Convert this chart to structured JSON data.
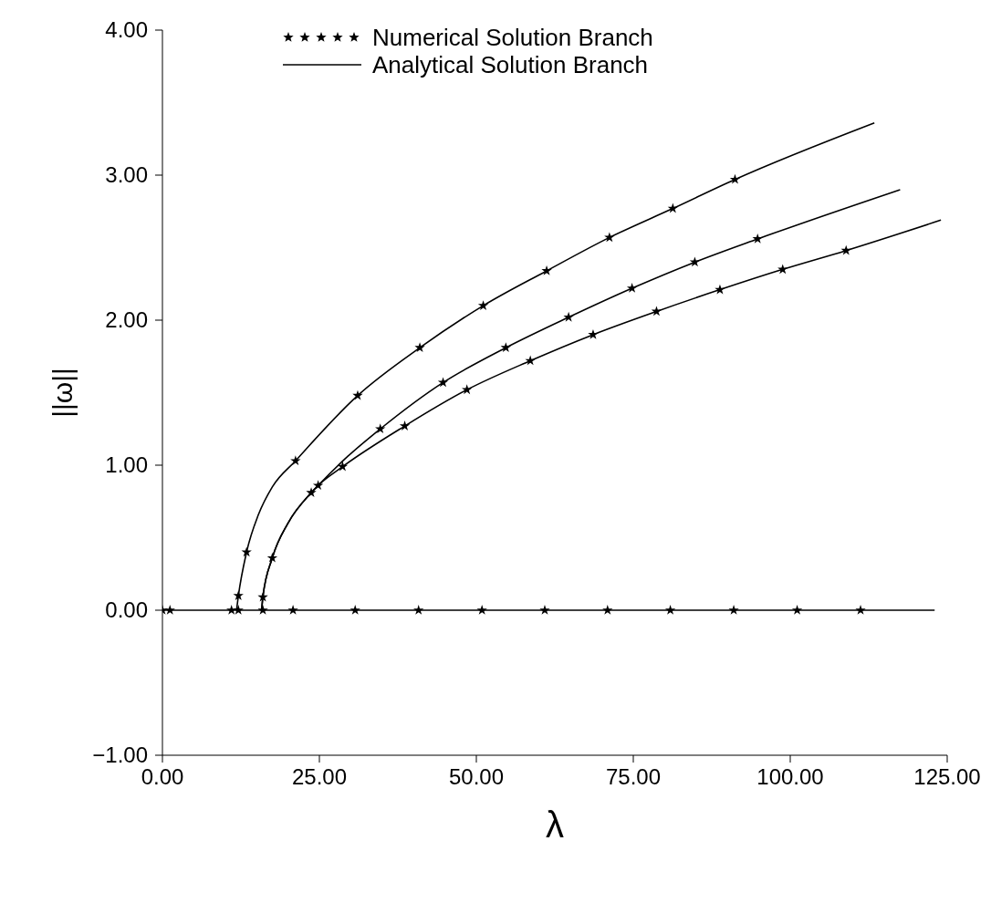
{
  "chart_data": {
    "type": "line",
    "xlabel": "λ",
    "ylabel": "||ω||",
    "xlim": [
      0,
      125
    ],
    "ylim": [
      -1,
      4
    ],
    "xticks": [
      {
        "value": 0,
        "label": "0.00"
      },
      {
        "value": 25,
        "label": "25.00"
      },
      {
        "value": 50,
        "label": "50.00"
      },
      {
        "value": 75,
        "label": "75.00"
      },
      {
        "value": 100,
        "label": "100.00"
      },
      {
        "value": 125,
        "label": "125.00"
      }
    ],
    "yticks": [
      {
        "value": -1,
        "label": "−1.00"
      },
      {
        "value": 0,
        "label": "0.00"
      },
      {
        "value": 1,
        "label": "1.00"
      },
      {
        "value": 2,
        "label": "2.00"
      },
      {
        "value": 3,
        "label": "3.00"
      },
      {
        "value": 4,
        "label": "4.00"
      }
    ],
    "grid": false,
    "legend": "top",
    "series": [
      {
        "name": "Numerical Solution Branch",
        "type": "scatter",
        "marker": "star",
        "color": "#000000",
        "x": [
          0,
          1.2,
          11.0,
          12.1,
          16.0,
          20.8,
          30.7,
          40.8,
          50.9,
          60.9,
          70.9,
          80.9,
          91.0,
          101.1,
          111.2,
          12.1,
          13.4,
          21.2,
          31.1,
          41.0,
          51.1,
          61.2,
          71.2,
          81.3,
          91.2,
          16.0,
          17.5,
          23.7,
          24.8,
          34.7,
          44.7,
          54.7,
          64.7,
          74.8,
          84.8,
          94.8,
          28.7,
          38.6,
          48.5,
          58.6,
          68.6,
          78.7,
          88.8,
          98.8,
          108.9
        ],
        "values": [
          0,
          0,
          0,
          0,
          0,
          0,
          0,
          0,
          0,
          0,
          0,
          0,
          0,
          0,
          0,
          0.1,
          0.4,
          1.03,
          1.48,
          1.81,
          2.1,
          2.34,
          2.57,
          2.77,
          2.97,
          0.09,
          0.36,
          0.81,
          0.86,
          1.25,
          1.57,
          1.81,
          2.02,
          2.22,
          2.4,
          2.56,
          0.99,
          1.27,
          1.52,
          1.72,
          1.9,
          2.06,
          2.21,
          2.35,
          2.48
        ]
      },
      {
        "name": "Analytical Solution Branch",
        "type": "line",
        "color": "#000000",
        "x": [
          0,
          123
        ],
        "values": [
          0,
          0
        ]
      },
      {
        "type": "line",
        "color": "#000000",
        "x": [
          11.8,
          12.1,
          13.4,
          15.3,
          17.5,
          21.2,
          31.1,
          41.0,
          51.1,
          61.2,
          71.2,
          81.3,
          91.2,
          113.4
        ],
        "values": [
          0,
          0.1,
          0.4,
          0.66,
          0.85,
          1.03,
          1.48,
          1.81,
          2.1,
          2.34,
          2.57,
          2.77,
          2.97,
          3.36
        ]
      },
      {
        "type": "line",
        "color": "#000000",
        "x": [
          15.8,
          16.0,
          17.5,
          20.0,
          23.7,
          24.8,
          29.5,
          34.7,
          44.7,
          54.7,
          64.7,
          74.8,
          84.8,
          94.8,
          117.5
        ],
        "values": [
          0,
          0.09,
          0.36,
          0.6,
          0.81,
          0.86,
          1.06,
          1.25,
          1.57,
          1.81,
          2.02,
          2.22,
          2.4,
          2.56,
          2.9
        ]
      },
      {
        "type": "line",
        "color": "#000000",
        "x": [
          15.8,
          16.0,
          17.5,
          20.0,
          23.7,
          24.8,
          28.7,
          38.6,
          48.5,
          58.6,
          68.6,
          78.7,
          88.8,
          98.8,
          108.9,
          124.0
        ],
        "values": [
          0,
          0.09,
          0.36,
          0.6,
          0.81,
          0.86,
          0.99,
          1.27,
          1.52,
          1.72,
          1.9,
          2.06,
          2.21,
          2.35,
          2.48,
          2.69
        ]
      }
    ]
  }
}
